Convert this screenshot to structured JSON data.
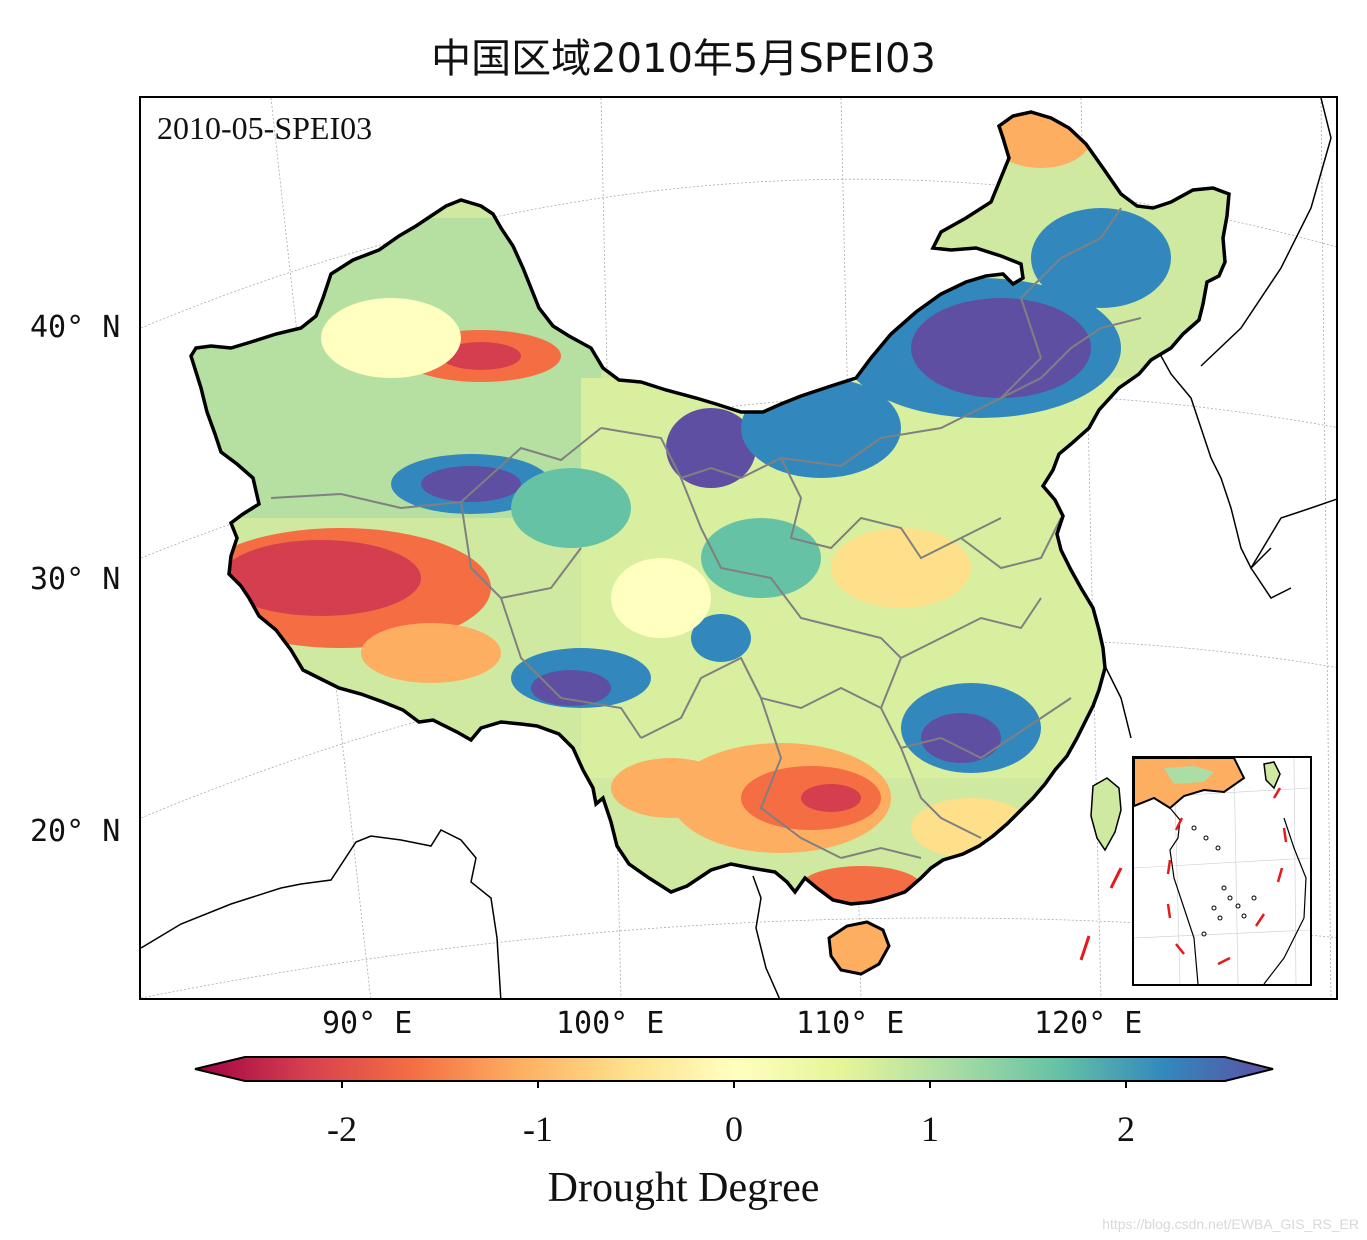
{
  "title": "中国区域2010年5月SPEI03",
  "map": {
    "corner_label": "2010-05-SPEI03",
    "lat_labels": [
      "40° N",
      "30° N",
      "20° N"
    ],
    "lon_labels": [
      "90° E",
      "100° E",
      "110° E",
      "120° E"
    ]
  },
  "colorbar": {
    "ticks": [
      "-2",
      "-1",
      "0",
      "1",
      "2"
    ],
    "label": "Drought Degree",
    "colormap": "Spectral",
    "colors": [
      "#9e0142",
      "#d53e4f",
      "#f46d43",
      "#fdae61",
      "#fee08b",
      "#ffffbf",
      "#e6f598",
      "#abdda4",
      "#66c2a5",
      "#3288bd",
      "#5e4fa2"
    ],
    "extend": "both"
  },
  "colors": {
    "country_border": "#000000",
    "province_border": "#808080",
    "nine_dash_line": "#e41a1c",
    "graticule": "#aaaaaa"
  },
  "watermark": "https://blog.csdn.net/EWBA_GIS_RS_ER"
}
